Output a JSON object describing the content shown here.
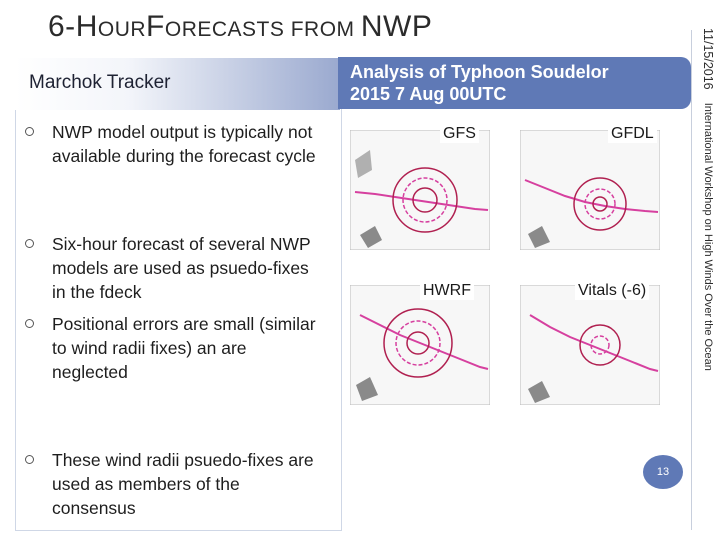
{
  "slide": {
    "title_first": "6-",
    "title_word1_cap": "H",
    "title_word1_rest": "OUR",
    "title_word2_cap": "F",
    "title_word2_rest": "ORECASTS FROM ",
    "title_tail": "NWP",
    "left_header": "Marchok Tracker",
    "right_header_line1": "Analysis of Typhoon Soudelor",
    "right_header_line2": "2015 7 Aug 00UTC",
    "bullets": [
      "NWP model output is typically not available during the forecast cycle",
      "Six-hour forecast of several NWP models are used as psuedo-fixes in the fdeck",
      "Positional errors are small (similar to wind radii fixes) an are neglected",
      "These wind radii  psuedo-fixes are used as members of the consensus"
    ],
    "models": [
      "GFS",
      "GFDL",
      "HWRF",
      "Vitals (-6)"
    ],
    "side_date": "11/15/2016",
    "side_text": "International Workshop on High Winds Over the Ocean",
    "page_number": "13"
  },
  "colors": {
    "accent": "#5f79b6",
    "track": "#d6409f",
    "radii": "#b02050"
  }
}
